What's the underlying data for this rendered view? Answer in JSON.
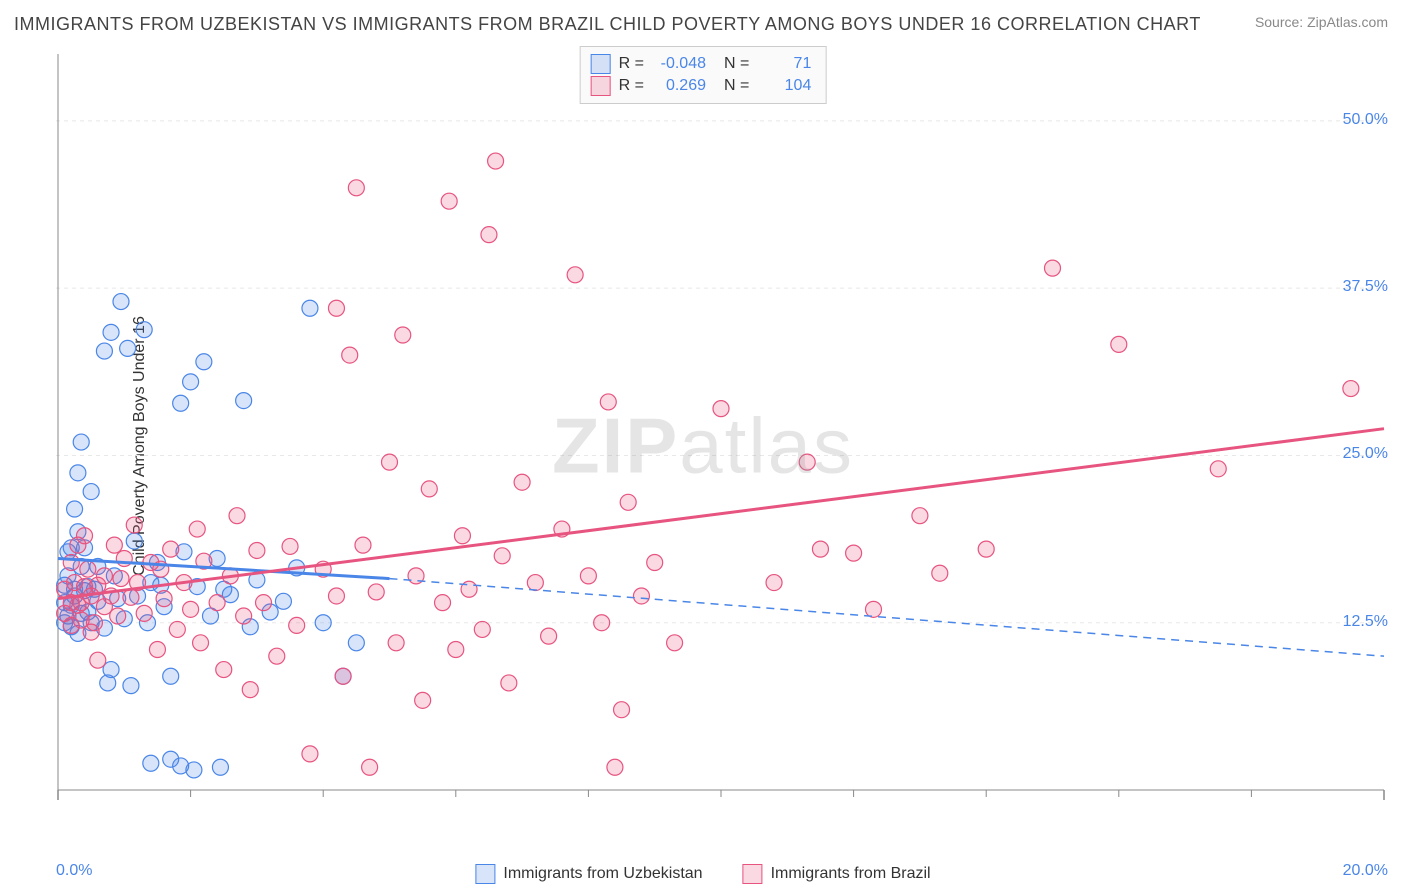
{
  "title": "IMMIGRANTS FROM UZBEKISTAN VS IMMIGRANTS FROM BRAZIL CHILD POVERTY AMONG BOYS UNDER 16 CORRELATION CHART",
  "source_prefix": "Source: ",
  "source_name": "ZipAtlas.com",
  "ylabel": "Child Poverty Among Boys Under 16",
  "watermark_bold": "ZIP",
  "watermark_light": "atlas",
  "chart": {
    "type": "scatter",
    "xlim": [
      0,
      20
    ],
    "ylim": [
      0,
      55
    ],
    "xtick_vals": [
      0,
      20
    ],
    "xtick_labels": [
      "0.0%",
      "20.0%"
    ],
    "ytick_vals": [
      12.5,
      25.0,
      37.5,
      50.0
    ],
    "ytick_labels": [
      "12.5%",
      "25.0%",
      "37.5%",
      "50.0%"
    ],
    "minor_xticks": [
      2,
      4,
      6,
      8,
      10,
      12,
      14,
      16,
      18
    ],
    "background_color": "#ffffff",
    "grid_color": "#e8e8e8",
    "grid_dash": "4,4",
    "axis_color": "#888888",
    "marker_radius": 8,
    "marker_stroke_width": 1.2,
    "marker_fill_opacity": 0.22,
    "trend_line_width": 3,
    "trend_dash": "8,6",
    "series": [
      {
        "key": "uzbekistan",
        "label": "Immigrants from Uzbekistan",
        "stroke": "#4a86e8",
        "fill": "#4a86e8",
        "R": "-0.048",
        "N": "71",
        "trend": {
          "x1": 0,
          "y1": 17.3,
          "x2": 5.0,
          "y2": 15.8,
          "x2_dash": 20,
          "y2_dash": 10.0
        },
        "points": [
          [
            0.1,
            12.5
          ],
          [
            0.1,
            14.0
          ],
          [
            0.1,
            15.3
          ],
          [
            0.15,
            16.0
          ],
          [
            0.15,
            13.0
          ],
          [
            0.15,
            17.8
          ],
          [
            0.2,
            12.2
          ],
          [
            0.2,
            18.1
          ],
          [
            0.2,
            13.8
          ],
          [
            0.25,
            14.5
          ],
          [
            0.25,
            15.0
          ],
          [
            0.25,
            21.0
          ],
          [
            0.3,
            19.3
          ],
          [
            0.3,
            11.7
          ],
          [
            0.3,
            23.7
          ],
          [
            0.35,
            13.2
          ],
          [
            0.35,
            16.7
          ],
          [
            0.35,
            26.0
          ],
          [
            0.4,
            14.9
          ],
          [
            0.4,
            18.1
          ],
          [
            0.45,
            13.3
          ],
          [
            0.45,
            15.2
          ],
          [
            0.5,
            22.3
          ],
          [
            0.5,
            12.5
          ],
          [
            0.55,
            15.0
          ],
          [
            0.6,
            16.7
          ],
          [
            0.6,
            14.1
          ],
          [
            0.7,
            32.8
          ],
          [
            0.7,
            12.1
          ],
          [
            0.75,
            8.0
          ],
          [
            0.8,
            34.2
          ],
          [
            0.8,
            9.0
          ],
          [
            0.85,
            16.0
          ],
          [
            0.9,
            14.3
          ],
          [
            0.95,
            36.5
          ],
          [
            1.0,
            12.8
          ],
          [
            1.05,
            33.0
          ],
          [
            1.1,
            7.8
          ],
          [
            1.15,
            18.6
          ],
          [
            1.2,
            14.5
          ],
          [
            1.3,
            34.4
          ],
          [
            1.35,
            12.5
          ],
          [
            1.4,
            15.5
          ],
          [
            1.4,
            2.0
          ],
          [
            1.5,
            17.0
          ],
          [
            1.55,
            15.3
          ],
          [
            1.6,
            13.7
          ],
          [
            1.7,
            8.5
          ],
          [
            1.7,
            2.3
          ],
          [
            1.85,
            28.9
          ],
          [
            1.85,
            1.8
          ],
          [
            1.9,
            17.8
          ],
          [
            2.0,
            30.5
          ],
          [
            2.05,
            1.5
          ],
          [
            2.1,
            15.2
          ],
          [
            2.2,
            32.0
          ],
          [
            2.3,
            13.0
          ],
          [
            2.4,
            17.3
          ],
          [
            2.45,
            1.7
          ],
          [
            2.5,
            15.0
          ],
          [
            2.6,
            14.6
          ],
          [
            2.8,
            29.1
          ],
          [
            2.9,
            12.2
          ],
          [
            3.0,
            15.7
          ],
          [
            3.2,
            13.3
          ],
          [
            3.4,
            14.1
          ],
          [
            3.6,
            16.6
          ],
          [
            3.8,
            36.0
          ],
          [
            4.0,
            12.5
          ],
          [
            4.3,
            8.5
          ],
          [
            4.5,
            11.0
          ]
        ]
      },
      {
        "key": "brazil",
        "label": "Immigrants from Brazil",
        "stroke": "#e75480",
        "fill": "#e75480",
        "R": "0.269",
        "N": "104",
        "trend": {
          "x1": 0,
          "y1": 14.3,
          "x2": 20,
          "y2": 27.0,
          "x2_dash": 20,
          "y2_dash": 27.0
        },
        "points": [
          [
            0.1,
            15.0
          ],
          [
            0.1,
            13.2
          ],
          [
            0.2,
            14.0
          ],
          [
            0.2,
            12.3
          ],
          [
            0.2,
            17.0
          ],
          [
            0.25,
            15.5
          ],
          [
            0.3,
            13.8
          ],
          [
            0.3,
            18.3
          ],
          [
            0.35,
            14.0
          ],
          [
            0.35,
            12.7
          ],
          [
            0.4,
            15.2
          ],
          [
            0.4,
            19.0
          ],
          [
            0.45,
            16.5
          ],
          [
            0.5,
            14.5
          ],
          [
            0.5,
            11.8
          ],
          [
            0.55,
            12.5
          ],
          [
            0.6,
            15.3
          ],
          [
            0.6,
            9.7
          ],
          [
            0.7,
            13.7
          ],
          [
            0.7,
            16.0
          ],
          [
            0.8,
            14.5
          ],
          [
            0.85,
            18.3
          ],
          [
            0.9,
            13.0
          ],
          [
            0.95,
            15.8
          ],
          [
            1.0,
            17.3
          ],
          [
            1.1,
            14.4
          ],
          [
            1.15,
            19.8
          ],
          [
            1.2,
            15.5
          ],
          [
            1.3,
            13.2
          ],
          [
            1.4,
            17.0
          ],
          [
            1.5,
            10.5
          ],
          [
            1.55,
            16.5
          ],
          [
            1.6,
            14.3
          ],
          [
            1.7,
            18.0
          ],
          [
            1.8,
            12.0
          ],
          [
            1.9,
            15.5
          ],
          [
            2.0,
            13.5
          ],
          [
            2.1,
            19.5
          ],
          [
            2.15,
            11.0
          ],
          [
            2.2,
            17.1
          ],
          [
            2.4,
            14.0
          ],
          [
            2.5,
            9.0
          ],
          [
            2.6,
            16.0
          ],
          [
            2.7,
            20.5
          ],
          [
            2.8,
            13.0
          ],
          [
            2.9,
            7.5
          ],
          [
            3.0,
            17.9
          ],
          [
            3.1,
            14.0
          ],
          [
            3.3,
            10.0
          ],
          [
            3.5,
            18.2
          ],
          [
            3.6,
            12.3
          ],
          [
            3.8,
            2.7
          ],
          [
            4.0,
            16.5
          ],
          [
            4.2,
            14.5
          ],
          [
            4.2,
            36.0
          ],
          [
            4.3,
            8.5
          ],
          [
            4.4,
            32.5
          ],
          [
            4.5,
            45.0
          ],
          [
            4.6,
            18.3
          ],
          [
            4.7,
            1.7
          ],
          [
            4.8,
            14.8
          ],
          [
            5.0,
            24.5
          ],
          [
            5.1,
            11.0
          ],
          [
            5.2,
            34.0
          ],
          [
            5.4,
            16.0
          ],
          [
            5.5,
            6.7
          ],
          [
            5.6,
            22.5
          ],
          [
            5.8,
            14.0
          ],
          [
            5.9,
            44.0
          ],
          [
            6.0,
            10.5
          ],
          [
            6.1,
            19.0
          ],
          [
            6.2,
            15.0
          ],
          [
            6.4,
            12.0
          ],
          [
            6.5,
            41.5
          ],
          [
            6.6,
            47.0
          ],
          [
            6.7,
            17.5
          ],
          [
            6.8,
            8.0
          ],
          [
            7.0,
            23.0
          ],
          [
            7.2,
            15.5
          ],
          [
            7.4,
            11.5
          ],
          [
            7.6,
            19.5
          ],
          [
            7.8,
            38.5
          ],
          [
            8.0,
            16.0
          ],
          [
            8.2,
            12.5
          ],
          [
            8.3,
            29.0
          ],
          [
            8.4,
            1.7
          ],
          [
            8.5,
            6.0
          ],
          [
            8.6,
            21.5
          ],
          [
            8.8,
            14.5
          ],
          [
            9.0,
            17.0
          ],
          [
            9.3,
            11.0
          ],
          [
            10.0,
            28.5
          ],
          [
            10.8,
            15.5
          ],
          [
            11.3,
            24.5
          ],
          [
            11.5,
            18.0
          ],
          [
            12.0,
            17.7
          ],
          [
            12.3,
            13.5
          ],
          [
            13.0,
            20.5
          ],
          [
            13.3,
            16.2
          ],
          [
            14.0,
            18.0
          ],
          [
            15.0,
            39.0
          ],
          [
            16.0,
            33.3
          ],
          [
            17.5,
            24.0
          ],
          [
            19.5,
            30.0
          ]
        ]
      }
    ]
  },
  "legend_stats": {
    "r_label": "R =",
    "n_label": "N ="
  },
  "footer_legend_sep": "  "
}
